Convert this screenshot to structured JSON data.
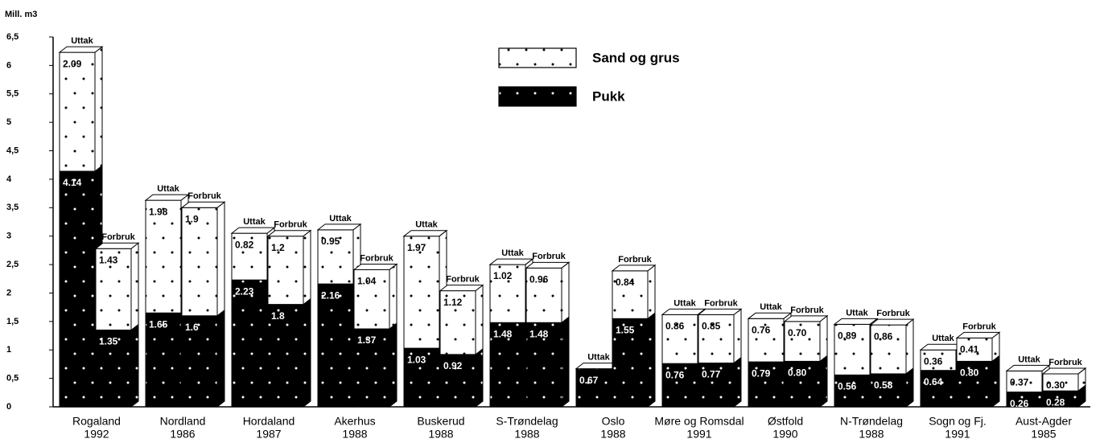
{
  "chart_data": {
    "type": "bar",
    "y_label": "Mill. m3",
    "ylim": [
      0,
      6.5
    ],
    "yticks": [
      0,
      {
        "value": 0.5,
        "label": "0,5"
      },
      1,
      {
        "value": 1.5,
        "label": "1,5"
      },
      2,
      {
        "value": 2.5,
        "label": "2,5"
      },
      3,
      {
        "value": 3.5,
        "label": "3,5"
      },
      4,
      {
        "value": 4.5,
        "label": "4,5"
      },
      5,
      {
        "value": 5.5,
        "label": "5,5"
      },
      6,
      {
        "value": 6.5,
        "label": "6,5"
      }
    ],
    "series": [
      {
        "name": "Pukk",
        "color": "#000000"
      },
      {
        "name": "Sand og grus",
        "color": "#ffffff"
      }
    ],
    "groups": [
      {
        "category": "Rogaland",
        "year": "1992",
        "bars": [
          {
            "label": "Uttak",
            "values": [
              4.14,
              2.09
            ],
            "value_labels": [
              "4.14",
              "2.09"
            ]
          },
          {
            "label": "Forbruk",
            "values": [
              1.35,
              1.43
            ],
            "value_labels": [
              "1.35",
              "1.43"
            ]
          }
        ]
      },
      {
        "category": "Nordland",
        "year": "1986",
        "bars": [
          {
            "label": "Uttak",
            "values": [
              1.65,
              1.98
            ],
            "value_labels": [
              "1.65",
              "1.98"
            ]
          },
          {
            "label": "Forbruk",
            "values": [
              1.6,
              1.9
            ],
            "value_labels": [
              "1.6",
              "1.9"
            ]
          }
        ]
      },
      {
        "category": "Hordaland",
        "year": "1987",
        "bars": [
          {
            "label": "Uttak",
            "values": [
              2.23,
              0.82
            ],
            "value_labels": [
              "2.23",
              "0.82"
            ]
          },
          {
            "label": "Forbruk",
            "values": [
              1.8,
              1.2
            ],
            "value_labels": [
              "1.8",
              "1.2"
            ]
          }
        ]
      },
      {
        "category": "Akerhus",
        "year": "1988",
        "bars": [
          {
            "label": "Uttak",
            "values": [
              2.16,
              0.95
            ],
            "value_labels": [
              "2.16",
              "0.95"
            ]
          },
          {
            "label": "Forbruk",
            "values": [
              1.37,
              1.04
            ],
            "value_labels": [
              "1.37",
              "1.04"
            ]
          }
        ]
      },
      {
        "category": "Buskerud",
        "year": "1988",
        "bars": [
          {
            "label": "Uttak",
            "values": [
              1.03,
              1.97
            ],
            "value_labels": [
              "1.03",
              "1.97"
            ]
          },
          {
            "label": "Forbruk",
            "values": [
              0.92,
              1.12
            ],
            "value_labels": [
              "0.92",
              "1.12"
            ]
          }
        ]
      },
      {
        "category": "S-Trøndelag",
        "year": "1988",
        "bars": [
          {
            "label": "Uttak",
            "values": [
              1.48,
              1.02
            ],
            "value_labels": [
              "1.48",
              "1.02"
            ]
          },
          {
            "label": "Forbruk",
            "values": [
              1.48,
              0.96
            ],
            "value_labels": [
              "1.48",
              "0.96"
            ]
          }
        ]
      },
      {
        "category": "Oslo",
        "year": "1988",
        "bars": [
          {
            "label": "Uttak",
            "values": [
              0.67,
              null
            ],
            "value_labels": [
              "0.67",
              null
            ]
          },
          {
            "label": "Forbruk",
            "values": [
              1.55,
              0.84
            ],
            "value_labels": [
              "1.55",
              "0.84"
            ]
          }
        ]
      },
      {
        "category": "Møre og Romsdal",
        "year": "1991",
        "bars": [
          {
            "label": "Uttak",
            "values": [
              0.76,
              0.86
            ],
            "value_labels": [
              "0.76",
              "0.86"
            ]
          },
          {
            "label": "Forbruk",
            "values": [
              0.77,
              0.85
            ],
            "value_labels": [
              "0.77",
              "0.85"
            ]
          }
        ]
      },
      {
        "category": "Østfold",
        "year": "1990",
        "bars": [
          {
            "label": "Uttak",
            "values": [
              0.79,
              0.76
            ],
            "value_labels": [
              "0.79",
              "0.76"
            ]
          },
          {
            "label": "Forbruk",
            "values": [
              0.8,
              0.7
            ],
            "value_labels": [
              "0.80",
              "0.70"
            ]
          }
        ]
      },
      {
        "category": "N-Trøndelag",
        "year": "1988",
        "bars": [
          {
            "label": "Uttak",
            "values": [
              0.56,
              0.89
            ],
            "value_labels": [
              "0.56",
              "0.89"
            ]
          },
          {
            "label": "Forbruk",
            "values": [
              0.58,
              0.86
            ],
            "value_labels": [
              "0.58",
              "0.86"
            ]
          }
        ]
      },
      {
        "category": "Sogn og Fj.",
        "year": "1991",
        "bars": [
          {
            "label": "Uttak",
            "values": [
              0.64,
              0.36
            ],
            "value_labels": [
              "0.64",
              "0.36"
            ]
          },
          {
            "label": "Forbruk",
            "values": [
              0.8,
              0.41
            ],
            "value_labels": [
              "0.80",
              "0.41"
            ]
          }
        ]
      },
      {
        "category": "Aust-Agder",
        "year": "1985",
        "bars": [
          {
            "label": "Uttak",
            "values": [
              0.26,
              0.37
            ],
            "value_labels": [
              "0.26",
              "0.37"
            ]
          },
          {
            "label": "Forbruk",
            "values": [
              0.28,
              0.3
            ],
            "value_labels": [
              "0.28",
              "0.30"
            ]
          }
        ]
      }
    ]
  }
}
